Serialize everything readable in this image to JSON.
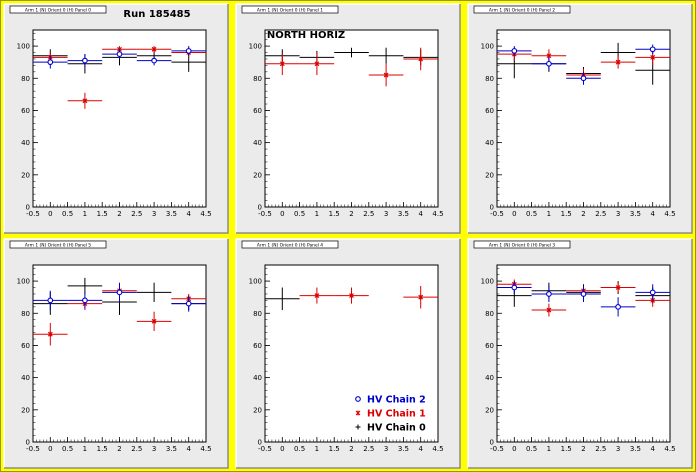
{
  "page": {
    "run_label": "Run 185485",
    "north_label": "NORTH HORIZ"
  },
  "legend": {
    "entries": [
      {
        "label": "HV Chain 2",
        "color": "#0000cc",
        "marker": "circle"
      },
      {
        "label": "HV Chain 1",
        "color": "#dd0000",
        "marker": "star"
      },
      {
        "label": "HV Chain 0",
        "color": "#000000",
        "marker": "plus"
      }
    ]
  },
  "chart_data": [
    {
      "type": "scatter",
      "title": "Arm 1 (N) Orient 0 (H) Panel 0",
      "xlim": [
        -0.5,
        4.5
      ],
      "ylim": [
        0,
        110
      ],
      "xticks": [
        "-0.5",
        "0",
        "0.5",
        "1",
        "1.5",
        "2",
        "2.5",
        "3",
        "3.5",
        "4",
        "4.5"
      ],
      "yticks": [
        "0",
        "20",
        "40",
        "60",
        "80",
        "100"
      ],
      "series": [
        {
          "name": "HV Chain 0",
          "color": "#000000",
          "x": [
            0,
            1,
            2,
            3,
            4
          ],
          "y": [
            94,
            89,
            93,
            94,
            90
          ],
          "yerr": [
            4,
            6,
            5,
            4,
            6
          ]
        },
        {
          "name": "HV Chain 1",
          "color": "#dd0000",
          "x": [
            0,
            1,
            2,
            3,
            4
          ],
          "y": [
            93,
            66,
            98,
            98,
            96
          ],
          "yerr": [
            3,
            5,
            2,
            2,
            3
          ]
        },
        {
          "name": "HV Chain 2",
          "color": "#0000cc",
          "x": [
            0,
            1,
            2,
            3,
            4
          ],
          "y": [
            90,
            91,
            95,
            91,
            97
          ],
          "yerr": [
            4,
            4,
            3,
            3,
            3
          ]
        }
      ]
    },
    {
      "type": "scatter",
      "title": "Arm 1 (N) Orient 0 (H) Panel 1",
      "xlim": [
        -0.5,
        4.5
      ],
      "ylim": [
        0,
        110
      ],
      "xticks": [
        "-0.5",
        "0",
        "0.5",
        "1",
        "1.5",
        "2",
        "2.5",
        "3",
        "3.5",
        "4",
        "4.5"
      ],
      "yticks": [
        "0",
        "20",
        "40",
        "60",
        "80",
        "100"
      ],
      "series": [
        {
          "name": "HV Chain 0",
          "color": "#000000",
          "x": [
            0,
            1,
            2,
            3,
            4
          ],
          "y": [
            94,
            93,
            96,
            94,
            93
          ],
          "yerr": [
            4,
            4,
            3,
            5,
            5
          ]
        },
        {
          "name": "HV Chain 1",
          "color": "#dd0000",
          "x": [
            0,
            1,
            3,
            4
          ],
          "y": [
            89,
            89,
            82,
            92
          ],
          "yerr": [
            7,
            7,
            7,
            7
          ]
        }
      ]
    },
    {
      "type": "scatter",
      "title": "Arm 1 (N) Orient 0 (H) Panel 2",
      "xlim": [
        -0.5,
        4.5
      ],
      "ylim": [
        0,
        110
      ],
      "xticks": [
        "-0.5",
        "0",
        "0.5",
        "1",
        "1.5",
        "2",
        "2.5",
        "3",
        "3.5",
        "4",
        "4.5"
      ],
      "yticks": [
        "0",
        "20",
        "40",
        "60",
        "80",
        "100"
      ],
      "series": [
        {
          "name": "HV Chain 0",
          "color": "#000000",
          "x": [
            0,
            1,
            2,
            3,
            4
          ],
          "y": [
            89,
            89,
            83,
            96,
            85
          ],
          "yerr": [
            9,
            5,
            4,
            6,
            9
          ]
        },
        {
          "name": "HV Chain 1",
          "color": "#dd0000",
          "x": [
            0,
            1,
            2,
            3,
            4
          ],
          "y": [
            95,
            94,
            82,
            90,
            93
          ],
          "yerr": [
            4,
            4,
            4,
            4,
            5
          ]
        },
        {
          "name": "HV Chain 2",
          "color": "#0000cc",
          "x": [
            0,
            1,
            2,
            4
          ],
          "y": [
            97,
            89,
            80,
            98
          ],
          "yerr": [
            3,
            4,
            4,
            3
          ]
        }
      ]
    },
    {
      "type": "scatter",
      "title": "Arm 1 (N) Orient 0 (H) Panel 5",
      "xlim": [
        -0.5,
        4.5
      ],
      "ylim": [
        0,
        110
      ],
      "xticks": [
        "-0.5",
        "0",
        "0.5",
        "1",
        "1.5",
        "2",
        "2.5",
        "3",
        "3.5",
        "4",
        "4.5"
      ],
      "yticks": [
        "0",
        "20",
        "40",
        "60",
        "80",
        "100"
      ],
      "series": [
        {
          "name": "HV Chain 0",
          "color": "#000000",
          "x": [
            0,
            1,
            2,
            3,
            4
          ],
          "y": [
            86,
            97,
            87,
            93,
            86
          ],
          "yerr": [
            7,
            5,
            8,
            6,
            4
          ]
        },
        {
          "name": "HV Chain 1",
          "color": "#dd0000",
          "x": [
            0,
            1,
            2,
            3,
            4
          ],
          "y": [
            67,
            86,
            94,
            75,
            89
          ],
          "yerr": [
            7,
            4,
            3,
            6,
            3
          ]
        },
        {
          "name": "HV Chain 2",
          "color": "#0000cc",
          "x": [
            0,
            1,
            2,
            4
          ],
          "y": [
            88,
            88,
            93,
            86
          ],
          "yerr": [
            6,
            5,
            6,
            5
          ]
        }
      ]
    },
    {
      "type": "scatter",
      "title": "Arm 1 (N) Orient 0 (H) Panel 4",
      "xlim": [
        -0.5,
        4.5
      ],
      "ylim": [
        0,
        110
      ],
      "xticks": [
        "-0.5",
        "0",
        "0.5",
        "1",
        "1.5",
        "2",
        "2.5",
        "3",
        "3.5",
        "4",
        "4.5"
      ],
      "yticks": [
        "0",
        "20",
        "40",
        "60",
        "80",
        "100"
      ],
      "series": [
        {
          "name": "HV Chain 0",
          "color": "#000000",
          "x": [
            0
          ],
          "y": [
            89
          ],
          "yerr": [
            7
          ]
        },
        {
          "name": "HV Chain 1",
          "color": "#dd0000",
          "x": [
            1,
            2,
            4
          ],
          "y": [
            91,
            91,
            90
          ],
          "yerr": [
            5,
            5,
            7
          ]
        }
      ]
    },
    {
      "type": "scatter",
      "title": "Arm 1 (N) Orient 0 (H) Panel 3",
      "xlim": [
        -0.5,
        4.5
      ],
      "ylim": [
        0,
        110
      ],
      "xticks": [
        "-0.5",
        "0",
        "0.5",
        "1",
        "1.5",
        "2",
        "2.5",
        "3",
        "3.5",
        "4",
        "4.5"
      ],
      "yticks": [
        "0",
        "20",
        "40",
        "60",
        "80",
        "100"
      ],
      "series": [
        {
          "name": "HV Chain 0",
          "color": "#000000",
          "x": [
            0,
            1,
            2,
            3,
            4
          ],
          "y": [
            91,
            94,
            93,
            96,
            91
          ],
          "yerr": [
            7,
            5,
            5,
            4,
            5
          ]
        },
        {
          "name": "HV Chain 1",
          "color": "#dd0000",
          "x": [
            0,
            1,
            2,
            3,
            4
          ],
          "y": [
            98,
            82,
            94,
            96,
            88
          ],
          "yerr": [
            3,
            4,
            3,
            3,
            4
          ]
        },
        {
          "name": "HV Chain 2",
          "color": "#0000cc",
          "x": [
            0,
            1,
            2,
            3,
            4
          ],
          "y": [
            96,
            92,
            92,
            84,
            93
          ],
          "yerr": [
            4,
            5,
            5,
            6,
            5
          ]
        }
      ]
    }
  ]
}
